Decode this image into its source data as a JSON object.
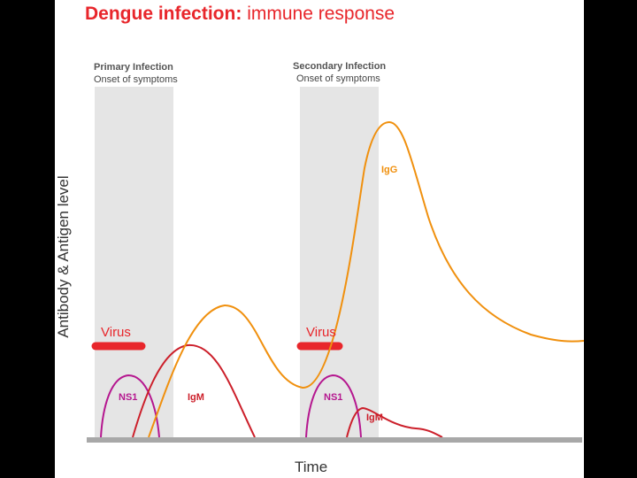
{
  "title": {
    "bold": "Dengue infection:",
    "light": "immune response"
  },
  "axes": {
    "ylabel": "Antibody & Antigen level",
    "xlabel": "Time"
  },
  "primary": {
    "heading": "Primary Infection",
    "sub": "Onset of symptoms"
  },
  "secondary": {
    "heading": "Secondary Infection",
    "sub": "Onset of symptoms"
  },
  "labels": {
    "virus1": "Virus",
    "virus2": "Virus",
    "ns1_1": "NS1",
    "ns1_2": "NS1",
    "igm1": "IgM",
    "igm2": "IgM",
    "igg": "IgG"
  },
  "colors": {
    "virus": "#e8262b",
    "ns1": "#b5178f",
    "igm": "#cc1f2a",
    "igg": "#f0900e",
    "band": "#e5e5e5",
    "baseline": "#a8a8a8"
  }
}
